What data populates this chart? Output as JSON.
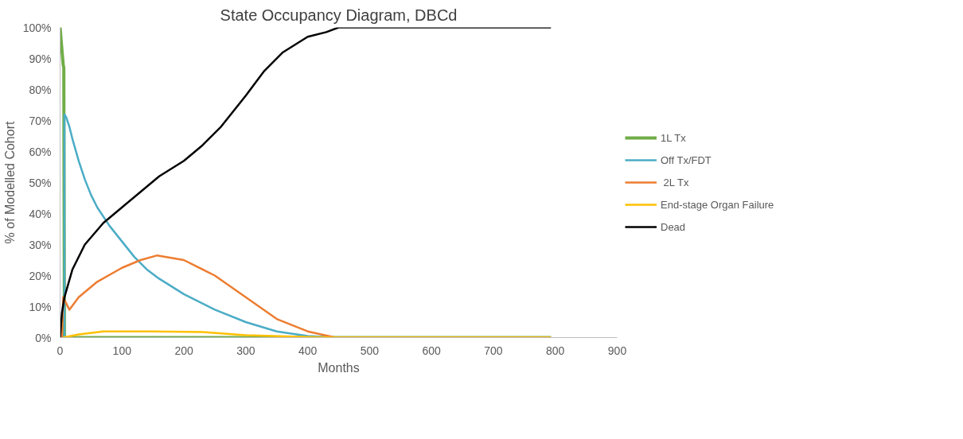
{
  "chart_data": {
    "type": "line",
    "title": "State Occupancy Diagram, DBCd",
    "xlabel": "Months",
    "ylabel": "% of Modelled Cohort",
    "xlim": [
      0,
      900
    ],
    "xticks": [
      0,
      100,
      200,
      300,
      400,
      500,
      600,
      700,
      800,
      900
    ],
    "ylim": [
      0,
      100
    ],
    "yticks": [
      {
        "value": 0,
        "label": "0%"
      },
      {
        "value": 10,
        "label": "10%"
      },
      {
        "value": 20,
        "label": "20%"
      },
      {
        "value": 30,
        "label": "30%"
      },
      {
        "value": 40,
        "label": "40%"
      },
      {
        "value": 50,
        "label": "50%"
      },
      {
        "value": 60,
        "label": "60%"
      },
      {
        "value": 70,
        "label": "70%"
      },
      {
        "value": 80,
        "label": "80%"
      },
      {
        "value": 90,
        "label": "90%"
      },
      {
        "value": 100,
        "label": "100%"
      }
    ],
    "grid": false,
    "legend": "right",
    "marker": "none",
    "line_style": "solid",
    "series": [
      {
        "name": "1L Tx",
        "color": "#70ad47",
        "x": [
          0,
          2,
          5,
          6,
          7,
          100,
          400,
          793
        ],
        "values": [
          100,
          95,
          88,
          87,
          0,
          0,
          0,
          0
        ]
      },
      {
        "name": "Off Tx/FDT",
        "color": "#4bacc6",
        "x": [
          7,
          7,
          10,
          15,
          20,
          30,
          40,
          50,
          60,
          80,
          100,
          120,
          140,
          160,
          200,
          250,
          300,
          350,
          400,
          450,
          793
        ],
        "values": [
          0,
          72,
          71,
          68,
          64,
          57,
          51,
          46,
          42,
          36,
          31,
          26,
          22,
          19,
          14,
          9,
          5,
          2,
          0.5,
          0,
          0
        ]
      },
      {
        "name": " 2L Tx",
        "color": "#ed7d31",
        "x": [
          3,
          5,
          15,
          30,
          60,
          100,
          130,
          157,
          200,
          250,
          300,
          350,
          400,
          445,
          793
        ],
        "values": [
          0,
          13,
          9,
          13,
          18,
          22.5,
          25,
          26.5,
          25,
          20,
          13,
          6,
          2,
          0,
          0
        ]
      },
      {
        "name": "End-stage Organ Failure",
        "color": "#ffc000",
        "x": [
          5,
          30,
          70,
          150,
          230,
          300,
          400,
          450,
          793
        ],
        "values": [
          0,
          1,
          2,
          2,
          1.8,
          0.8,
          0.2,
          0,
          0
        ]
      },
      {
        "name": "Dead",
        "color": "#000000",
        "x": [
          0,
          3,
          7,
          20,
          40,
          70,
          100,
          130,
          160,
          200,
          230,
          260,
          300,
          330,
          360,
          400,
          430,
          450,
          793
        ],
        "values": [
          0,
          8,
          13,
          22,
          30,
          37,
          42,
          47,
          52,
          57,
          62,
          68,
          78,
          86,
          92,
          97,
          98.5,
          100,
          100
        ]
      }
    ]
  }
}
